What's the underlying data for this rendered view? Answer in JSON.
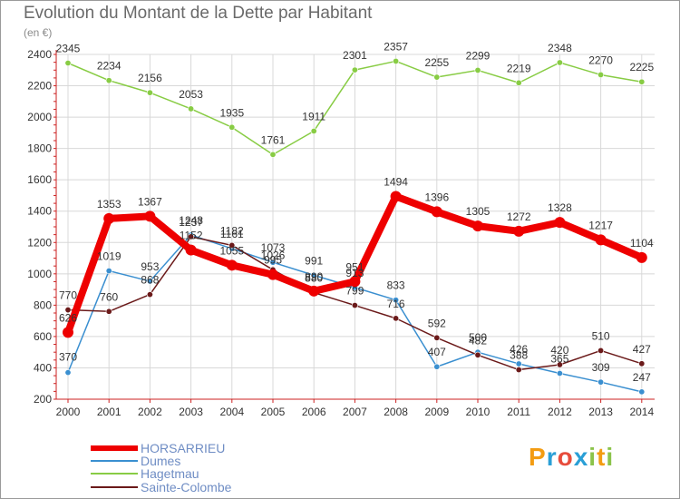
{
  "chart_data": {
    "type": "line",
    "title": "Evolution du Montant de la Dette par Habitant",
    "subtitle": "(en €)",
    "x": [
      "2000",
      "2001",
      "2002",
      "2003",
      "2004",
      "2005",
      "2006",
      "2007",
      "2008",
      "2009",
      "2010",
      "2011",
      "2012",
      "2013",
      "2014"
    ],
    "ylim": [
      200,
      2400
    ],
    "yticks": [
      200,
      400,
      600,
      800,
      1000,
      1200,
      1400,
      1600,
      1800,
      2000,
      2200,
      2400
    ],
    "grid": true,
    "legend_position": "bottom-left",
    "series": [
      {
        "name": "HORSARRIEU",
        "color": "#ee0000",
        "values": [
          626,
          1353,
          1367,
          1152,
          1055,
          995,
          890,
          951,
          1494,
          1396,
          1305,
          1272,
          1328,
          1217,
          1104
        ],
        "labels": [
          "626",
          "1353",
          "1367",
          "1152",
          "1055",
          "995",
          "890",
          "951",
          "1494",
          "1396",
          "1305",
          "1272",
          "1328",
          "1217",
          "1104"
        ]
      },
      {
        "name": "Dumes",
        "color": "#3a8fd0",
        "values": [
          370,
          1019,
          953,
          1248,
          1161,
          1073,
          991,
          913,
          833,
          407,
          500,
          426,
          365,
          309,
          247
        ],
        "labels": [
          "370",
          "1019",
          "953",
          "1248",
          "1161",
          "1073",
          "991",
          "913",
          "833",
          "407",
          "500",
          "426",
          "365",
          "309",
          "247"
        ]
      },
      {
        "name": "Hagetmau",
        "color": "#88cc44",
        "values": [
          2345,
          2234,
          2156,
          2053,
          1935,
          1761,
          1911,
          2301,
          2357,
          2255,
          2299,
          2219,
          2348,
          2270,
          2225
        ],
        "labels": [
          "2345",
          "2234",
          "2156",
          "2053",
          "1935",
          "1761",
          "1911",
          "2301",
          "2357",
          "2255",
          "2299",
          "2219",
          "2348",
          "2270",
          "2225"
        ]
      },
      {
        "name": "Sainte-Colombe",
        "color": "#6b1a1a",
        "values": [
          770,
          760,
          868,
          1237,
          1182,
          1026,
          880,
          799,
          716,
          592,
          482,
          388,
          420,
          510,
          427
        ],
        "labels": [
          "770",
          "760",
          "868",
          "1237",
          "1182",
          "1026",
          "880",
          "799",
          "716",
          "592",
          "482",
          "388",
          "420",
          "510",
          "427"
        ]
      }
    ]
  },
  "logo": {
    "text": "Proxiti",
    "letters": [
      "P",
      "r",
      "o",
      "x",
      "i",
      "t",
      "i"
    ],
    "colors": [
      "#f39c12",
      "#2a9fd6",
      "#e74c3c",
      "#2a9fd6",
      "#8bc34a",
      "#f39c12",
      "#8bc34a"
    ]
  }
}
